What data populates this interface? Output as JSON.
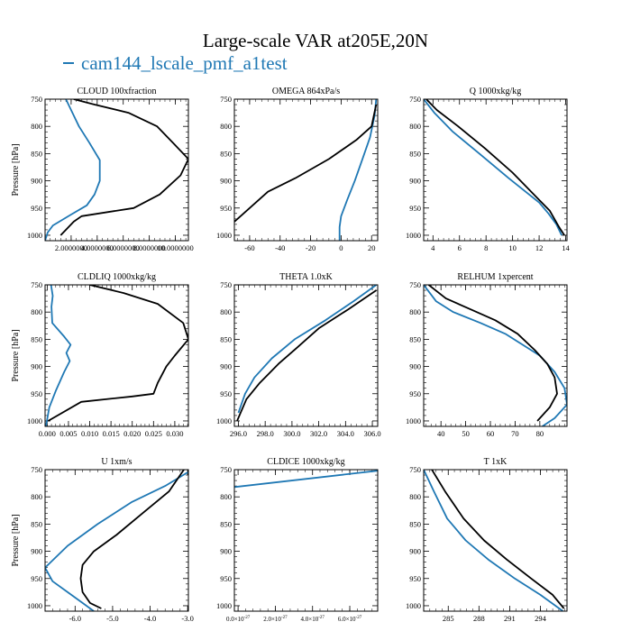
{
  "figure": {
    "title": "Large-scale VAR at205E,20N",
    "legend": [
      {
        "label": "cam144_lscale_pmf_a1test",
        "color": "#1f78b4"
      },
      {
        "label": "",
        "color": "#000000"
      }
    ]
  },
  "chart_data": [
    {
      "type": "line",
      "title": "CLOUD  100xfraction",
      "xlabel": "",
      "ylabel": "Pressure [hPa]",
      "xlim": [
        0.0,
        0.055
      ],
      "ylim": [
        1010,
        750
      ],
      "xticks": [
        0.01,
        0.02,
        0.03,
        0.04,
        0.05
      ],
      "xticklabels": [
        "2.0000000",
        "4.0000000",
        "6.0000000",
        "8.0000000",
        "10.0000000"
      ],
      "yticks": [
        750,
        800,
        850,
        900,
        950,
        1000
      ],
      "series": [
        {
          "name": "cam144_lscale_pmf_a1test",
          "color": "#1f78b4",
          "x": [
            0.008,
            0.011,
            0.013,
            0.017,
            0.021,
            0.021,
            0.019,
            0.016,
            0.01,
            0.003,
            0.001,
            0.0
          ],
          "y": [
            750,
            780,
            800,
            830,
            862,
            900,
            925,
            945,
            962,
            982,
            995,
            1010
          ]
        },
        {
          "name": "",
          "color": "#000000",
          "x": [
            0.011,
            0.019,
            0.032,
            0.043,
            0.049,
            0.055,
            0.052,
            0.044,
            0.034,
            0.014,
            0.011,
            0.006
          ],
          "y": [
            750,
            760,
            775,
            800,
            830,
            860,
            890,
            925,
            950,
            965,
            975,
            1000
          ]
        }
      ]
    },
    {
      "type": "line",
      "title": "OMEGA  864xPa/s",
      "xlabel": "",
      "ylabel": "",
      "xlim": [
        -70,
        24
      ],
      "ylim": [
        1010,
        750
      ],
      "xticks": [
        -60,
        -40,
        -20,
        0,
        20
      ],
      "xticklabels": [
        "-60",
        "-40",
        "-20",
        "0",
        "20"
      ],
      "yticks": [
        750,
        800,
        850,
        900,
        950,
        1000
      ],
      "series": [
        {
          "name": "cam144_lscale_pmf_a1test",
          "color": "#1f78b4",
          "x": [
            23,
            22,
            19,
            14,
            9,
            4,
            0,
            -1,
            -1,
            -1
          ],
          "y": [
            750,
            780,
            820,
            860,
            900,
            935,
            965,
            985,
            1000,
            1010
          ]
        },
        {
          "name": "",
          "color": "#000000",
          "x": [
            23,
            20,
            10,
            -8,
            -30,
            -48,
            -70
          ],
          "y": [
            760,
            800,
            825,
            860,
            895,
            920,
            975
          ]
        }
      ]
    },
    {
      "type": "line",
      "title": "Q  1000xkg/kg",
      "xlabel": "",
      "ylabel": "",
      "xlim": [
        3.3,
        14.1
      ],
      "ylim": [
        1010,
        750
      ],
      "xticks": [
        4,
        6,
        8,
        10,
        12,
        14
      ],
      "xticklabels": [
        "4",
        "6",
        "8",
        "10",
        "12",
        "14"
      ],
      "yticks": [
        750,
        800,
        850,
        900,
        950,
        1000
      ],
      "series": [
        {
          "name": "cam144_lscale_pmf_a1test",
          "color": "#1f78b4",
          "x": [
            3.3,
            4.1,
            5.5,
            7.5,
            9.7,
            12.0,
            12.7,
            13.3,
            13.7
          ],
          "y": [
            750,
            775,
            810,
            850,
            895,
            940,
            960,
            980,
            1000
          ]
        },
        {
          "name": "",
          "color": "#000000",
          "x": [
            3.5,
            4.3,
            5.9,
            7.9,
            10.0,
            12.0,
            12.8,
            13.5,
            13.9
          ],
          "y": [
            750,
            770,
            800,
            840,
            885,
            935,
            955,
            985,
            1000
          ]
        }
      ]
    },
    {
      "type": "line",
      "title": "CLDLIQ  1000xkg/kg",
      "xlabel": "",
      "ylabel": "Pressure [hPa]",
      "xlim": [
        -0.0005,
        0.0332
      ],
      "ylim": [
        1010,
        750
      ],
      "xticks": [
        0.0,
        0.005,
        0.01,
        0.015,
        0.02,
        0.025,
        0.03
      ],
      "xticklabels": [
        "0.000",
        "0.005",
        "0.010",
        "0.015",
        "0.020",
        "0.025",
        "0.030"
      ],
      "yticks": [
        750,
        800,
        850,
        900,
        950,
        1000
      ],
      "series": [
        {
          "name": "cam144_lscale_pmf_a1test",
          "color": "#1f78b4",
          "x": [
            0.0009,
            0.0013,
            0.001,
            0.0012,
            0.004,
            0.0055,
            0.0045,
            0.0053,
            0.004,
            0.002,
            0.0005,
            -0.0003
          ],
          "y": [
            750,
            770,
            790,
            820,
            845,
            860,
            875,
            890,
            910,
            945,
            975,
            1010
          ]
        },
        {
          "name": "",
          "color": "#000000",
          "x": [
            0.01,
            0.018,
            0.026,
            0.032,
            0.0332,
            0.03,
            0.028,
            0.026,
            0.025,
            0.02,
            0.008,
            0.0002
          ],
          "y": [
            750,
            765,
            785,
            820,
            850,
            880,
            900,
            930,
            950,
            955,
            965,
            1000
          ]
        }
      ]
    },
    {
      "type": "line",
      "title": "THETA  1.0xK",
      "xlabel": "",
      "ylabel": "",
      "xlim": [
        295.7,
        306.4
      ],
      "ylim": [
        1010,
        750
      ],
      "xticks": [
        296.0,
        298.0,
        300.0,
        302.0,
        304.0,
        306.0
      ],
      "xticklabels": [
        "296.0",
        "298.0",
        "300.0",
        "302.0",
        "304.0",
        "306.0"
      ],
      "yticks": [
        750,
        800,
        850,
        900,
        950,
        1000
      ],
      "series": [
        {
          "name": "cam144_lscale_pmf_a1test",
          "color": "#1f78b4",
          "x": [
            306.3,
            304.6,
            302.5,
            300.2,
            298.5,
            297.2,
            296.5,
            296.0
          ],
          "y": [
            750,
            780,
            815,
            850,
            885,
            920,
            950,
            985
          ]
        },
        {
          "name": "",
          "color": "#000000",
          "x": [
            306.3,
            304.2,
            302.0,
            300.4,
            299.0,
            297.6,
            296.6,
            295.9
          ],
          "y": [
            760,
            795,
            830,
            865,
            895,
            930,
            960,
            1000
          ]
        }
      ]
    },
    {
      "type": "line",
      "title": "RELHUM  1xpercent",
      "xlabel": "",
      "ylabel": "",
      "xlim": [
        33,
        91
      ],
      "ylim": [
        1010,
        750
      ],
      "xticks": [
        40,
        50,
        60,
        70,
        80
      ],
      "xticklabels": [
        "40",
        "50",
        "60",
        "70",
        "80"
      ],
      "yticks": [
        750,
        800,
        850,
        900,
        950,
        1000
      ],
      "series": [
        {
          "name": "cam144_lscale_pmf_a1test",
          "color": "#1f78b4",
          "x": [
            33,
            38,
            45,
            56,
            66,
            73,
            80,
            86,
            90,
            91,
            86,
            81
          ],
          "y": [
            750,
            780,
            800,
            820,
            840,
            860,
            880,
            910,
            940,
            970,
            995,
            1010
          ]
        },
        {
          "name": "",
          "color": "#000000",
          "x": [
            35,
            42,
            52,
            62,
            71,
            78,
            83,
            86,
            87,
            84,
            79
          ],
          "y": [
            750,
            775,
            795,
            815,
            840,
            870,
            895,
            920,
            950,
            975,
            1000
          ]
        }
      ]
    },
    {
      "type": "line",
      "title": "U  1xm/s",
      "xlabel": "",
      "ylabel": "Pressure [hPa]",
      "xlim": [
        -6.8,
        -2.98
      ],
      "ylim": [
        1010,
        750
      ],
      "xticks": [
        -6.0,
        -5.0,
        -4.0,
        -3.0
      ],
      "xticklabels": [
        "-6.0",
        "-5.0",
        "-4.0",
        "-3.0"
      ],
      "yticks": [
        750,
        800,
        850,
        900,
        950,
        1000
      ],
      "series": [
        {
          "name": "cam144_lscale_pmf_a1test",
          "color": "#1f78b4",
          "x": [
            -3.0,
            -3.6,
            -4.5,
            -5.4,
            -6.2,
            -6.8,
            -6.6,
            -6.2,
            -5.8,
            -5.5
          ],
          "y": [
            755,
            780,
            810,
            850,
            890,
            930,
            955,
            975,
            995,
            1010
          ]
        },
        {
          "name": "",
          "color": "#000000",
          "x": [
            -3.1,
            -3.5,
            -4.2,
            -4.9,
            -5.5,
            -5.8,
            -5.85,
            -5.8,
            -5.6,
            -5.3
          ],
          "y": [
            750,
            790,
            830,
            870,
            900,
            925,
            950,
            975,
            995,
            1005
          ]
        }
      ]
    },
    {
      "type": "line",
      "title": "CLDICE  1000xkg/kg",
      "xlabel": "",
      "ylabel": "",
      "xlim": [
        -2e-28,
        7.5e-27
      ],
      "ylim": [
        1010,
        750
      ],
      "xticks": [
        0,
        2e-27,
        4e-27,
        6e-27
      ],
      "xticklabels": [
        "0.0×10",
        "2.0×10",
        "4.0×10",
        "6.0×10"
      ],
      "xtickexp": "-27",
      "yticks": [
        750,
        800,
        850,
        900,
        950,
        1000
      ],
      "series": [
        {
          "name": "cam144_lscale_pmf_a1test",
          "color": "#1f78b4",
          "x": [
            -2e-28,
            7.5e-27
          ],
          "y": [
            782,
            752
          ]
        }
      ]
    },
    {
      "type": "line",
      "title": "T  1xK",
      "xlabel": "",
      "ylabel": "",
      "xlim": [
        282.6,
        296.6
      ],
      "ylim": [
        1010,
        750
      ],
      "xticks": [
        285,
        288,
        291,
        294
      ],
      "xticklabels": [
        "285",
        "288",
        "291",
        "294"
      ],
      "yticks": [
        750,
        800,
        850,
        900,
        950,
        1000
      ],
      "series": [
        {
          "name": "cam144_lscale_pmf_a1test",
          "color": "#1f78b4",
          "x": [
            282.6,
            283.6,
            284.9,
            286.7,
            288.9,
            291.5,
            294.0,
            296.2
          ],
          "y": [
            750,
            790,
            840,
            880,
            915,
            950,
            980,
            1010
          ]
        },
        {
          "name": "",
          "color": "#000000",
          "x": [
            283.4,
            284.7,
            286.5,
            288.5,
            290.7,
            293.1,
            295.2,
            296.3
          ],
          "y": [
            750,
            790,
            840,
            880,
            915,
            950,
            980,
            1005
          ]
        }
      ]
    }
  ]
}
